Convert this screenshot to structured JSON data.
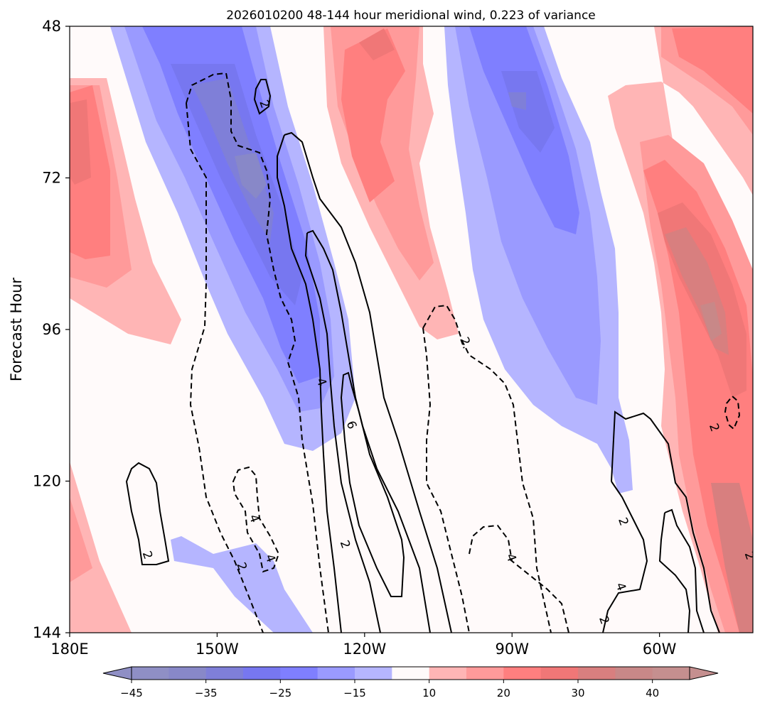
{
  "chart_data": {
    "type": "heatmap",
    "title": "2026010200 48-144 hour meridional wind, 0.223 of variance",
    "ylabel": "Forecast Hour",
    "xlabel": "",
    "x_range_lon": [
      180,
      319
    ],
    "y_range_hours": [
      48,
      144
    ],
    "y_inverted": true,
    "x_ticks": [
      {
        "lon": 180,
        "label": "180E"
      },
      {
        "lon": 210,
        "label": "150W"
      },
      {
        "lon": 240,
        "label": "120W"
      },
      {
        "lon": 270,
        "label": "90W"
      },
      {
        "lon": 300,
        "label": "60W"
      }
    ],
    "y_ticks": [
      {
        "hour": 48,
        "label": "48"
      },
      {
        "hour": 72,
        "label": "72"
      },
      {
        "hour": 96,
        "label": "96"
      },
      {
        "hour": 120,
        "label": "120"
      },
      {
        "hour": 144,
        "label": "144"
      }
    ],
    "colorbar": {
      "levels": [
        -45,
        -40,
        -35,
        -30,
        -25,
        -20,
        -15,
        -10,
        10,
        15,
        20,
        25,
        30,
        35,
        40,
        45
      ],
      "tick_values": [
        -45,
        -35,
        -25,
        -15,
        10,
        20,
        30,
        40
      ],
      "tick_labels": [
        "−45",
        "−35",
        "−25",
        "−15",
        "10",
        "20",
        "30",
        "40"
      ],
      "colors": [
        "#8f8fc5",
        "#8888c8",
        "#7f7fd8",
        "#7777f0",
        "#7f7fff",
        "#9a9aff",
        "#b5b5ff",
        "#fffafa",
        "#ffb5b5",
        "#ff9a9a",
        "#ff7f7f",
        "#f07777",
        "#d87f7f",
        "#c88888",
        "#c58f8f"
      ],
      "extend": "both"
    },
    "contour_lines": {
      "negative_style": "dashed",
      "positive_style": "solid",
      "labels": [
        {
          "text": "2",
          "lon": 219.7,
          "hour": 60.3
        },
        {
          "text": "2.",
          "lon": 260.6,
          "hour": 98.1
        },
        {
          "text": "4",
          "lon": 231.3,
          "hour": 104.3
        },
        {
          "text": "6",
          "lon": 237.4,
          "hour": 111.1
        },
        {
          "text": "2",
          "lon": 311.2,
          "hour": 111.5
        },
        {
          "text": "4",
          "lon": 217.6,
          "hour": 125.9
        },
        {
          "text": "2",
          "lon": 292.7,
          "hour": 126.4
        },
        {
          "text": "2",
          "lon": 236.1,
          "hour": 130.0
        },
        {
          "text": "2",
          "lon": 195.9,
          "hour": 131.7
        },
        {
          "text": "4",
          "lon": 220.9,
          "hour": 132.2
        },
        {
          "text": "4",
          "lon": 269.9,
          "hour": 132.1
        },
        {
          "text": "2",
          "lon": 215.1,
          "hour": 133.5
        },
        {
          "text": "2",
          "lon": 318.4,
          "hour": 131.8
        },
        {
          "text": "4",
          "lon": 292.2,
          "hour": 136.7
        },
        {
          "text": "2",
          "lon": 288.8,
          "hour": 142.0
        }
      ]
    }
  }
}
